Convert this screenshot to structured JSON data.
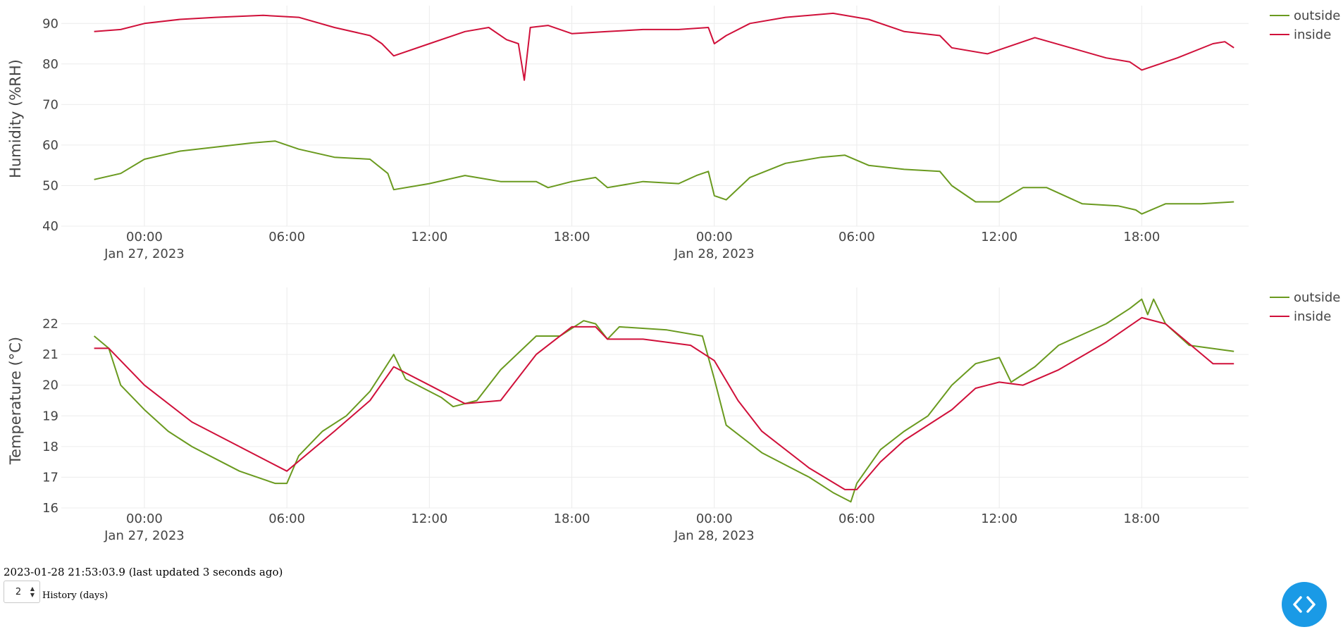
{
  "status": {
    "timestamp_text": "2023-01-28 21:53:03.9 (last updated 3 seconds ago)"
  },
  "history": {
    "value": "2",
    "label": "History (days)"
  },
  "icons": {
    "code_button": "code-icon",
    "stepper_up": "chevron-up-icon",
    "stepper_down": "chevron-down-icon"
  },
  "colors": {
    "outside": "#6a9a1f",
    "inside": "#d0103a",
    "code_button": "#1a9ae6"
  },
  "chart_data": [
    {
      "type": "line",
      "ylabel": "Humidity (%RH)",
      "xlabel": "",
      "x_range": [
        "2023-01-26 20:30",
        "2023-01-28 22:30"
      ],
      "ylim": [
        40,
        93
      ],
      "yticks": [
        40,
        50,
        60,
        70,
        80,
        90
      ],
      "xticks": [
        {
          "t": "2023-01-27 00:00",
          "label": "00:00",
          "date_label": "Jan 27, 2023"
        },
        {
          "t": "2023-01-27 06:00",
          "label": "06:00",
          "date_label": ""
        },
        {
          "t": "2023-01-27 12:00",
          "label": "12:00",
          "date_label": ""
        },
        {
          "t": "2023-01-27 18:00",
          "label": "18:00",
          "date_label": ""
        },
        {
          "t": "2023-01-28 00:00",
          "label": "00:00",
          "date_label": "Jan 28, 2023"
        },
        {
          "t": "2023-01-28 06:00",
          "label": "06:00",
          "date_label": ""
        },
        {
          "t": "2023-01-28 12:00",
          "label": "12:00",
          "date_label": ""
        },
        {
          "t": "2023-01-28 18:00",
          "label": "18:00",
          "date_label": ""
        }
      ],
      "grid": true,
      "legend_position": "top-right",
      "series": [
        {
          "name": "outside",
          "color": "#6a9a1f",
          "points": [
            [
              "2023-01-26 21:53",
              51.5
            ],
            [
              "2023-01-26 23:00",
              53.0
            ],
            [
              "2023-01-27 00:00",
              56.5
            ],
            [
              "2023-01-27 01:30",
              58.5
            ],
            [
              "2023-01-27 03:00",
              59.5
            ],
            [
              "2023-01-27 04:30",
              60.5
            ],
            [
              "2023-01-27 05:30",
              61.0
            ],
            [
              "2023-01-27 06:30",
              59.0
            ],
            [
              "2023-01-27 08:00",
              57.0
            ],
            [
              "2023-01-27 09:30",
              56.5
            ],
            [
              "2023-01-27 10:15",
              53.0
            ],
            [
              "2023-01-27 10:30",
              49.0
            ],
            [
              "2023-01-27 12:00",
              50.5
            ],
            [
              "2023-01-27 13:30",
              52.5
            ],
            [
              "2023-01-27 15:00",
              51.0
            ],
            [
              "2023-01-27 16:30",
              51.0
            ],
            [
              "2023-01-27 17:00",
              49.5
            ],
            [
              "2023-01-27 18:00",
              51.0
            ],
            [
              "2023-01-27 19:00",
              52.0
            ],
            [
              "2023-01-27 19:30",
              49.5
            ],
            [
              "2023-01-27 21:00",
              51.0
            ],
            [
              "2023-01-27 22:30",
              50.5
            ],
            [
              "2023-01-27 23:15",
              52.5
            ],
            [
              "2023-01-27 23:45",
              53.5
            ],
            [
              "2023-01-28 00:00",
              47.5
            ],
            [
              "2023-01-28 00:30",
              46.5
            ],
            [
              "2023-01-28 01:30",
              52.0
            ],
            [
              "2023-01-28 03:00",
              55.5
            ],
            [
              "2023-01-28 04:30",
              57.0
            ],
            [
              "2023-01-28 05:30",
              57.5
            ],
            [
              "2023-01-28 06:30",
              55.0
            ],
            [
              "2023-01-28 08:00",
              54.0
            ],
            [
              "2023-01-28 09:30",
              53.5
            ],
            [
              "2023-01-28 10:00",
              50.0
            ],
            [
              "2023-01-28 11:00",
              46.0
            ],
            [
              "2023-01-28 12:00",
              46.0
            ],
            [
              "2023-01-28 13:00",
              49.5
            ],
            [
              "2023-01-28 14:00",
              49.5
            ],
            [
              "2023-01-28 15:30",
              45.5
            ],
            [
              "2023-01-28 17:00",
              45.0
            ],
            [
              "2023-01-28 17:45",
              44.0
            ],
            [
              "2023-01-28 18:00",
              43.0
            ],
            [
              "2023-01-28 19:00",
              45.5
            ],
            [
              "2023-01-28 20:30",
              45.5
            ],
            [
              "2023-01-28 21:53",
              46.0
            ]
          ]
        },
        {
          "name": "inside",
          "color": "#d0103a",
          "points": [
            [
              "2023-01-26 21:53",
              88.0
            ],
            [
              "2023-01-26 23:00",
              88.5
            ],
            [
              "2023-01-27 00:00",
              90.0
            ],
            [
              "2023-01-27 01:30",
              91.0
            ],
            [
              "2023-01-27 03:00",
              91.5
            ],
            [
              "2023-01-27 05:00",
              92.0
            ],
            [
              "2023-01-27 06:30",
              91.5
            ],
            [
              "2023-01-27 08:00",
              89.0
            ],
            [
              "2023-01-27 09:30",
              87.0
            ],
            [
              "2023-01-27 10:00",
              85.0
            ],
            [
              "2023-01-27 10:30",
              82.0
            ],
            [
              "2023-01-27 12:00",
              85.0
            ],
            [
              "2023-01-27 13:30",
              88.0
            ],
            [
              "2023-01-27 14:30",
              89.0
            ],
            [
              "2023-01-27 15:15",
              86.0
            ],
            [
              "2023-01-27 15:45",
              85.0
            ],
            [
              "2023-01-27 16:00",
              76.0
            ],
            [
              "2023-01-27 16:15",
              89.0
            ],
            [
              "2023-01-27 17:00",
              89.5
            ],
            [
              "2023-01-27 18:00",
              87.5
            ],
            [
              "2023-01-27 19:30",
              88.0
            ],
            [
              "2023-01-27 21:00",
              88.5
            ],
            [
              "2023-01-27 22:30",
              88.5
            ],
            [
              "2023-01-27 23:45",
              89.0
            ],
            [
              "2023-01-28 00:00",
              85.0
            ],
            [
              "2023-01-28 00:30",
              87.0
            ],
            [
              "2023-01-28 01:30",
              90.0
            ],
            [
              "2023-01-28 03:00",
              91.5
            ],
            [
              "2023-01-28 05:00",
              92.5
            ],
            [
              "2023-01-28 06:30",
              91.0
            ],
            [
              "2023-01-28 08:00",
              88.0
            ],
            [
              "2023-01-28 09:30",
              87.0
            ],
            [
              "2023-01-28 10:00",
              84.0
            ],
            [
              "2023-01-28 11:30",
              82.5
            ],
            [
              "2023-01-28 12:30",
              84.5
            ],
            [
              "2023-01-28 13:30",
              86.5
            ],
            [
              "2023-01-28 15:00",
              84.0
            ],
            [
              "2023-01-28 16:30",
              81.5
            ],
            [
              "2023-01-28 17:30",
              80.5
            ],
            [
              "2023-01-28 18:00",
              78.5
            ],
            [
              "2023-01-28 19:30",
              81.5
            ],
            [
              "2023-01-28 21:00",
              85.0
            ],
            [
              "2023-01-28 21:30",
              85.5
            ],
            [
              "2023-01-28 21:53",
              84.0
            ]
          ]
        }
      ]
    },
    {
      "type": "line",
      "ylabel": "Temperature (°C)",
      "xlabel": "",
      "x_range": [
        "2023-01-26 20:30",
        "2023-01-28 22:30"
      ],
      "ylim": [
        16,
        23
      ],
      "yticks": [
        16,
        17,
        18,
        19,
        20,
        21,
        22
      ],
      "xticks": [
        {
          "t": "2023-01-27 00:00",
          "label": "00:00",
          "date_label": "Jan 27, 2023"
        },
        {
          "t": "2023-01-27 06:00",
          "label": "06:00",
          "date_label": ""
        },
        {
          "t": "2023-01-27 12:00",
          "label": "12:00",
          "date_label": ""
        },
        {
          "t": "2023-01-27 18:00",
          "label": "18:00",
          "date_label": ""
        },
        {
          "t": "2023-01-28 00:00",
          "label": "00:00",
          "date_label": "Jan 28, 2023"
        },
        {
          "t": "2023-01-28 06:00",
          "label": "06:00",
          "date_label": ""
        },
        {
          "t": "2023-01-28 12:00",
          "label": "12:00",
          "date_label": ""
        },
        {
          "t": "2023-01-28 18:00",
          "label": "18:00",
          "date_label": ""
        }
      ],
      "grid": true,
      "legend_position": "top-right",
      "series": [
        {
          "name": "outside",
          "color": "#6a9a1f",
          "points": [
            [
              "2023-01-26 21:53",
              21.6
            ],
            [
              "2023-01-26 22:30",
              21.2
            ],
            [
              "2023-01-26 23:00",
              20.0
            ],
            [
              "2023-01-27 00:00",
              19.2
            ],
            [
              "2023-01-27 01:00",
              18.5
            ],
            [
              "2023-01-27 02:00",
              18.0
            ],
            [
              "2023-01-27 03:00",
              17.6
            ],
            [
              "2023-01-27 04:00",
              17.2
            ],
            [
              "2023-01-27 05:30",
              16.8
            ],
            [
              "2023-01-27 06:00",
              16.8
            ],
            [
              "2023-01-27 06:30",
              17.7
            ],
            [
              "2023-01-27 07:30",
              18.5
            ],
            [
              "2023-01-27 08:30",
              19.0
            ],
            [
              "2023-01-27 09:30",
              19.8
            ],
            [
              "2023-01-27 10:30",
              21.0
            ],
            [
              "2023-01-27 11:00",
              20.2
            ],
            [
              "2023-01-27 12:30",
              19.6
            ],
            [
              "2023-01-27 13:00",
              19.3
            ],
            [
              "2023-01-27 14:00",
              19.5
            ],
            [
              "2023-01-27 15:00",
              20.5
            ],
            [
              "2023-01-27 16:30",
              21.6
            ],
            [
              "2023-01-27 17:30",
              21.6
            ],
            [
              "2023-01-27 18:30",
              22.1
            ],
            [
              "2023-01-27 19:00",
              22.0
            ],
            [
              "2023-01-27 19:30",
              21.5
            ],
            [
              "2023-01-27 20:00",
              21.9
            ],
            [
              "2023-01-27 22:00",
              21.8
            ],
            [
              "2023-01-27 23:30",
              21.6
            ],
            [
              "2023-01-28 00:00",
              20.2
            ],
            [
              "2023-01-28 00:30",
              18.7
            ],
            [
              "2023-01-28 02:00",
              17.8
            ],
            [
              "2023-01-28 04:00",
              17.0
            ],
            [
              "2023-01-28 05:00",
              16.5
            ],
            [
              "2023-01-28 05:45",
              16.2
            ],
            [
              "2023-01-28 06:00",
              16.8
            ],
            [
              "2023-01-28 07:00",
              17.9
            ],
            [
              "2023-01-28 08:00",
              18.5
            ],
            [
              "2023-01-28 09:00",
              19.0
            ],
            [
              "2023-01-28 10:00",
              20.0
            ],
            [
              "2023-01-28 11:00",
              20.7
            ],
            [
              "2023-01-28 12:00",
              20.9
            ],
            [
              "2023-01-28 12:30",
              20.1
            ],
            [
              "2023-01-28 13:30",
              20.6
            ],
            [
              "2023-01-28 14:30",
              21.3
            ],
            [
              "2023-01-28 16:30",
              22.0
            ],
            [
              "2023-01-28 17:30",
              22.5
            ],
            [
              "2023-01-28 18:00",
              22.8
            ],
            [
              "2023-01-28 18:15",
              22.3
            ],
            [
              "2023-01-28 18:30",
              22.8
            ],
            [
              "2023-01-28 19:00",
              22.0
            ],
            [
              "2023-01-28 20:00",
              21.3
            ],
            [
              "2023-01-28 21:53",
              21.1
            ]
          ]
        },
        {
          "name": "inside",
          "color": "#d0103a",
          "points": [
            [
              "2023-01-26 21:53",
              21.2
            ],
            [
              "2023-01-26 22:30",
              21.2
            ],
            [
              "2023-01-27 00:00",
              20.0
            ],
            [
              "2023-01-27 02:00",
              18.8
            ],
            [
              "2023-01-27 04:00",
              18.0
            ],
            [
              "2023-01-27 06:00",
              17.2
            ],
            [
              "2023-01-27 08:00",
              18.5
            ],
            [
              "2023-01-27 09:30",
              19.5
            ],
            [
              "2023-01-27 10:30",
              20.6
            ],
            [
              "2023-01-27 12:00",
              20.0
            ],
            [
              "2023-01-27 13:30",
              19.4
            ],
            [
              "2023-01-27 15:00",
              19.5
            ],
            [
              "2023-01-27 16:30",
              21.0
            ],
            [
              "2023-01-27 18:00",
              21.9
            ],
            [
              "2023-01-27 19:00",
              21.9
            ],
            [
              "2023-01-27 19:30",
              21.5
            ],
            [
              "2023-01-27 21:00",
              21.5
            ],
            [
              "2023-01-27 23:00",
              21.3
            ],
            [
              "2023-01-28 00:00",
              20.8
            ],
            [
              "2023-01-28 01:00",
              19.5
            ],
            [
              "2023-01-28 02:00",
              18.5
            ],
            [
              "2023-01-28 04:00",
              17.3
            ],
            [
              "2023-01-28 05:30",
              16.6
            ],
            [
              "2023-01-28 06:00",
              16.6
            ],
            [
              "2023-01-28 07:00",
              17.5
            ],
            [
              "2023-01-28 08:00",
              18.2
            ],
            [
              "2023-01-28 10:00",
              19.2
            ],
            [
              "2023-01-28 11:00",
              19.9
            ],
            [
              "2023-01-28 12:00",
              20.1
            ],
            [
              "2023-01-28 13:00",
              20.0
            ],
            [
              "2023-01-28 14:30",
              20.5
            ],
            [
              "2023-01-28 16:30",
              21.4
            ],
            [
              "2023-01-28 18:00",
              22.2
            ],
            [
              "2023-01-28 19:00",
              22.0
            ],
            [
              "2023-01-28 21:00",
              20.7
            ],
            [
              "2023-01-28 21:53",
              20.7
            ]
          ]
        }
      ]
    }
  ]
}
